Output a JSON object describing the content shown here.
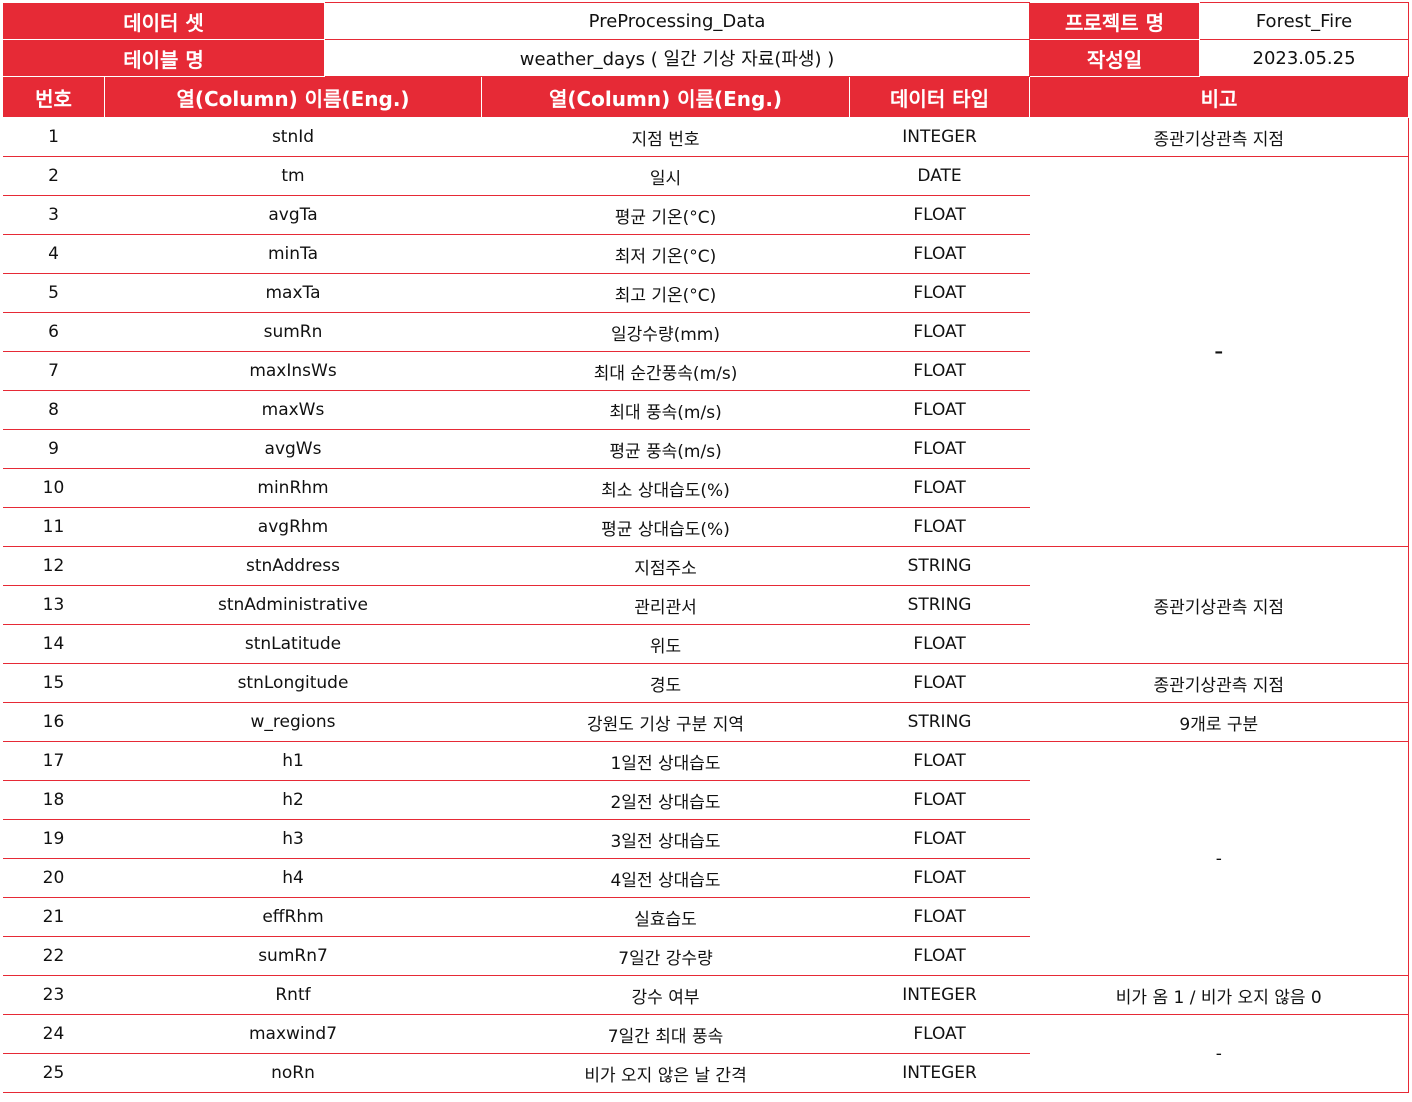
{
  "meta": {
    "dataset_label": "데이터 셋",
    "dataset_value": "PreProcessing_Data",
    "project_label": "프로젝트 명",
    "project_value": "Forest_Fire",
    "table_label": "테이블 명",
    "table_value": "weather_days ( 일간 기상 자료(파생) )",
    "date_label": "작성일",
    "date_value": "2023.05.25"
  },
  "headers": {
    "no": "번호",
    "col_eng": "열(Column) 이름(Eng.)",
    "col_desc": "열(Column) 이름(Eng.)",
    "type": "데이터 타입",
    "note": "비고"
  },
  "rows": [
    {
      "no": "1",
      "eng": "stnId",
      "desc": "지점 번호",
      "type": "INTEGER"
    },
    {
      "no": "2",
      "eng": "tm",
      "desc": "일시",
      "type": "DATE"
    },
    {
      "no": "3",
      "eng": "avgTa",
      "desc": "평균 기온(°C)",
      "type": "FLOAT"
    },
    {
      "no": "4",
      "eng": "minTa",
      "desc": "최저 기온(°C)",
      "type": "FLOAT"
    },
    {
      "no": "5",
      "eng": "maxTa",
      "desc": "최고 기온(°C)",
      "type": "FLOAT"
    },
    {
      "no": "6",
      "eng": "sumRn",
      "desc": "일강수량(mm)",
      "type": "FLOAT"
    },
    {
      "no": "7",
      "eng": "maxInsWs",
      "desc": "최대 순간풍속(m/s)",
      "type": "FLOAT"
    },
    {
      "no": "8",
      "eng": "maxWs",
      "desc": "최대 풍속(m/s)",
      "type": "FLOAT"
    },
    {
      "no": "9",
      "eng": "avgWs",
      "desc": "평균 풍속(m/s)",
      "type": "FLOAT"
    },
    {
      "no": "10",
      "eng": "minRhm",
      "desc": "최소 상대습도(%)",
      "type": "FLOAT"
    },
    {
      "no": "11",
      "eng": "avgRhm",
      "desc": "평균 상대습도(%)",
      "type": "FLOAT"
    },
    {
      "no": "12",
      "eng": "stnAddress",
      "desc": "지점주소",
      "type": "STRING"
    },
    {
      "no": "13",
      "eng": "stnAdministrative",
      "desc": "관리관서",
      "type": "STRING"
    },
    {
      "no": "14",
      "eng": "stnLatitude",
      "desc": "위도",
      "type": "FLOAT"
    },
    {
      "no": "15",
      "eng": "stnLongitude",
      "desc": "경도",
      "type": "FLOAT"
    },
    {
      "no": "16",
      "eng": "w_regions",
      "desc": "강원도 기상 구분 지역",
      "type": "STRING"
    },
    {
      "no": "17",
      "eng": "h1",
      "desc": "1일전 상대습도",
      "type": "FLOAT"
    },
    {
      "no": "18",
      "eng": "h2",
      "desc": "2일전 상대습도",
      "type": "FLOAT"
    },
    {
      "no": "19",
      "eng": "h3",
      "desc": "3일전 상대습도",
      "type": "FLOAT"
    },
    {
      "no": "20",
      "eng": "h4",
      "desc": "4일전 상대습도",
      "type": "FLOAT"
    },
    {
      "no": "21",
      "eng": "effRhm",
      "desc": "실효습도",
      "type": "FLOAT"
    },
    {
      "no": "22",
      "eng": "sumRn7",
      "desc": "7일간 강수량",
      "type": "FLOAT"
    },
    {
      "no": "23",
      "eng": "Rntf",
      "desc": "강수 여부",
      "type": "INTEGER"
    },
    {
      "no": "24",
      "eng": "maxwind7",
      "desc": "7일간 최대 풍속",
      "type": "FLOAT"
    },
    {
      "no": "25",
      "eng": "noRn",
      "desc": "비가 오지 않은 날 간격",
      "type": "INTEGER"
    }
  ],
  "notes": [
    {
      "text": "종관기상관측 지점"
    },
    {
      "text": "–"
    },
    {
      "text": "종관기상관측 지점"
    },
    {
      "text": "종관기상관측 지점"
    },
    {
      "text": "9개로 구분"
    },
    {
      "text": "-"
    },
    {
      "text": "비가 옴 1 / 비가 오지 않음 0"
    },
    {
      "text": "-"
    }
  ],
  "colors": {
    "accent_red": "#e62a36",
    "header_text": "#ffffff",
    "body_text": "#111111"
  }
}
